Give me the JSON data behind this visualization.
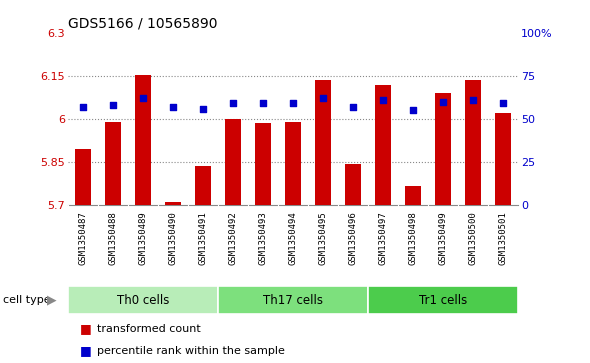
{
  "title": "GDS5166 / 10565890",
  "samples": [
    "GSM1350487",
    "GSM1350488",
    "GSM1350489",
    "GSM1350490",
    "GSM1350491",
    "GSM1350492",
    "GSM1350493",
    "GSM1350494",
    "GSM1350495",
    "GSM1350496",
    "GSM1350497",
    "GSM1350498",
    "GSM1350499",
    "GSM1350500",
    "GSM1350501"
  ],
  "transformed_counts": [
    5.895,
    5.988,
    6.153,
    5.712,
    5.835,
    6.001,
    5.985,
    5.988,
    6.137,
    5.842,
    6.118,
    5.765,
    6.09,
    6.135,
    6.022
  ],
  "percentile_ranks": [
    57,
    58,
    62,
    57,
    56,
    59,
    59,
    59,
    62,
    57,
    61,
    55,
    60,
    61,
    59
  ],
  "cell_types": [
    {
      "label": "Th0 cells",
      "start": 0,
      "end": 5,
      "color": "#b8edb8"
    },
    {
      "label": "Th17 cells",
      "start": 5,
      "end": 10,
      "color": "#7de07d"
    },
    {
      "label": "Tr1 cells",
      "start": 10,
      "end": 15,
      "color": "#4ccc4c"
    }
  ],
  "ylim_left": [
    5.7,
    6.3
  ],
  "ylim_right": [
    0,
    100
  ],
  "yticks_left": [
    5.7,
    5.85,
    6.0,
    6.15,
    6.3
  ],
  "ytick_labels_left": [
    "5.7",
    "5.85",
    "6",
    "6.15",
    "6.3"
  ],
  "yticks_right": [
    0,
    25,
    50,
    75,
    100
  ],
  "ytick_labels_right": [
    "0",
    "25",
    "50",
    "75",
    "100%"
  ],
  "bar_color": "#cc0000",
  "dot_color": "#0000cc",
  "bar_baseline": 5.7,
  "fig_bg_color": "#ffffff",
  "plot_bg_color": "#ffffff",
  "xtick_bg_color": "#d8d8d8",
  "cell_type_label": "cell type"
}
